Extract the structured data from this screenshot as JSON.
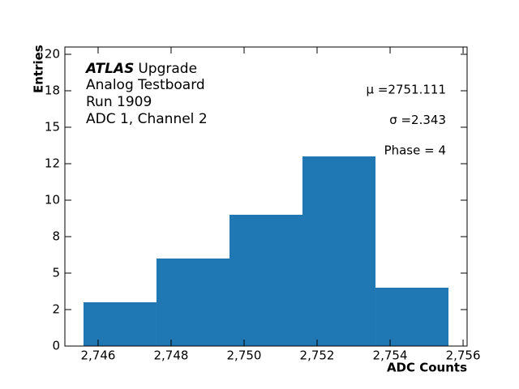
{
  "chart_data": {
    "type": "histogram",
    "xlabel": "ADC Counts",
    "ylabel": "Entries",
    "annotations": {
      "experiment": "ATLAS",
      "experiment_tag": "Upgrade",
      "lines": [
        "Analog Testboard",
        "Run 1909",
        "ADC 1, Channel 2"
      ],
      "stats": [
        "μ =2751.111",
        "σ =2.343",
        "Phase = 4"
      ]
    },
    "bins": [
      2745.6,
      2747.6,
      2749.6,
      2751.6,
      2753.6,
      2755.6
    ],
    "counts": [
      3,
      6,
      9,
      13,
      4
    ],
    "color": "#1f77b4",
    "xlim": [
      2745.09,
      2756.11
    ],
    "xticks": [
      {
        "value": 2746,
        "label": "2,746"
      },
      {
        "value": 2748,
        "label": "2,748"
      },
      {
        "value": 2750,
        "label": "2,750"
      },
      {
        "value": 2752,
        "label": "2,752"
      },
      {
        "value": 2754,
        "label": "2,754"
      },
      {
        "value": 2756,
        "label": "2,756"
      }
    ],
    "ylim": [
      0,
      20.5
    ],
    "yticks": [
      0,
      {
        "value": 2.5,
        "label": "2"
      },
      5,
      {
        "value": 7.5,
        "label": "8"
      },
      10,
      {
        "value": 12.5,
        "label": "12"
      },
      15,
      {
        "value": 17.5,
        "label": "18"
      },
      20
    ]
  }
}
